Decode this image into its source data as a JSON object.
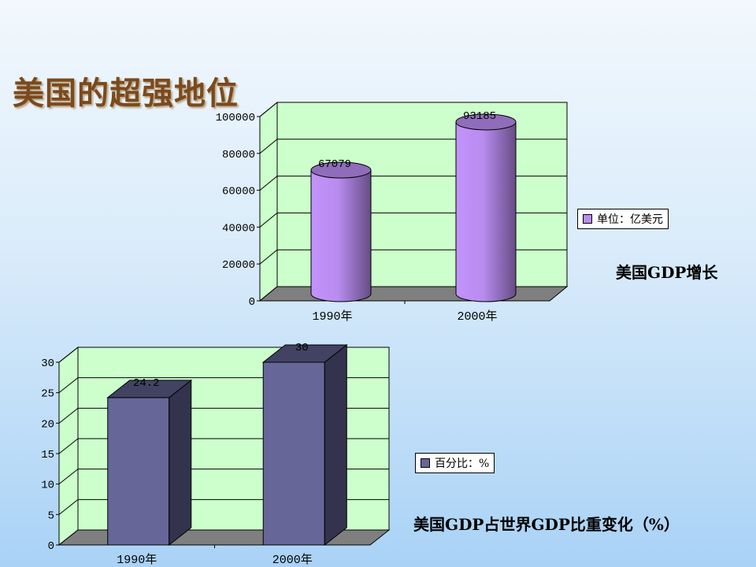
{
  "slide": {
    "title": "美国的超强地位"
  },
  "chart_data": [
    {
      "type": "bar",
      "style": "3d-cylinder",
      "title": "美国GDP增长",
      "categories": [
        "1990年",
        "2000年"
      ],
      "series": [
        {
          "name": "单位：亿美元",
          "values": [
            67079,
            93185
          ],
          "color": "#b98cf0"
        }
      ],
      "data_labels": [
        "67079",
        "93185"
      ],
      "ylim": [
        0,
        100000
      ],
      "yticks": [
        0,
        20000,
        40000,
        60000,
        80000,
        100000
      ],
      "ytick_labels": [
        "0",
        "20000",
        "40000",
        "60000",
        "80000",
        "100000"
      ],
      "grid": true,
      "plot_background": "#ccffcc",
      "floor_color": "#7f7f7f",
      "legend_position": "right"
    },
    {
      "type": "bar",
      "style": "3d-box",
      "title": "美国GDP占世界GDP比重变化（%）",
      "categories": [
        "1990年",
        "2000年"
      ],
      "series": [
        {
          "name": "百分比：%",
          "values": [
            24.2,
            30
          ],
          "color": "#666699"
        }
      ],
      "data_labels": [
        "24.2",
        "30"
      ],
      "ylim": [
        0,
        30
      ],
      "yticks": [
        0,
        5,
        10,
        15,
        20,
        25,
        30
      ],
      "ytick_labels": [
        "0",
        "5",
        "10",
        "15",
        "20",
        "25",
        "30"
      ],
      "grid": true,
      "plot_background": "#ccffcc",
      "floor_color": "#7f7f7f",
      "legend_position": "right"
    }
  ]
}
